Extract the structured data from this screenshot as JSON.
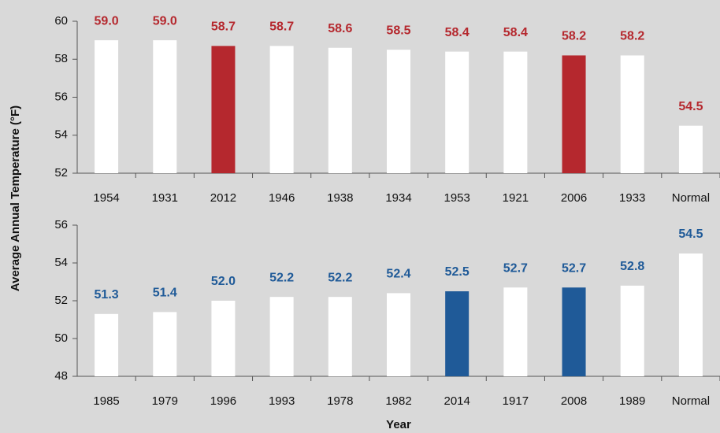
{
  "chart_data": [
    {
      "type": "bar",
      "y_label": "Average Annual Temperature (°F)",
      "categories": [
        "1954",
        "1931",
        "2012",
        "1946",
        "1938",
        "1934",
        "1953",
        "1921",
        "2006",
        "1933",
        "Normal"
      ],
      "values": [
        59.0,
        59.0,
        58.7,
        58.7,
        58.6,
        58.5,
        58.4,
        58.4,
        58.2,
        58.2,
        54.5
      ],
      "value_labels": [
        "59.0",
        "59.0",
        "58.7",
        "58.7",
        "58.6",
        "58.5",
        "58.4",
        "58.4",
        "58.2",
        "58.2",
        "54.5"
      ],
      "colors": [
        "#ffffff",
        "#ffffff",
        "#b5282e",
        "#ffffff",
        "#ffffff",
        "#ffffff",
        "#ffffff",
        "#ffffff",
        "#b5282e",
        "#ffffff",
        "#ffffff"
      ],
      "label_color": "#b5282e",
      "ylim": [
        52,
        60
      ],
      "yticks": [
        52,
        54,
        56,
        58,
        60
      ]
    },
    {
      "type": "bar",
      "x_label": "Year",
      "categories": [
        "1985",
        "1979",
        "1996",
        "1993",
        "1978",
        "1982",
        "2014",
        "1917",
        "2008",
        "1989",
        "Normal"
      ],
      "values": [
        51.3,
        51.4,
        52.0,
        52.2,
        52.2,
        52.4,
        52.5,
        52.7,
        52.7,
        52.8,
        54.5
      ],
      "value_labels": [
        "51.3",
        "51.4",
        "52.0",
        "52.2",
        "52.2",
        "52.4",
        "52.5",
        "52.7",
        "52.7",
        "52.8",
        "54.5"
      ],
      "colors": [
        "#ffffff",
        "#ffffff",
        "#ffffff",
        "#ffffff",
        "#ffffff",
        "#ffffff",
        "#1f5a98",
        "#ffffff",
        "#1f5a98",
        "#ffffff",
        "#ffffff"
      ],
      "label_color": "#1f5a98",
      "ylim": [
        48,
        56
      ],
      "yticks": [
        48,
        50,
        52,
        54,
        56
      ]
    }
  ]
}
